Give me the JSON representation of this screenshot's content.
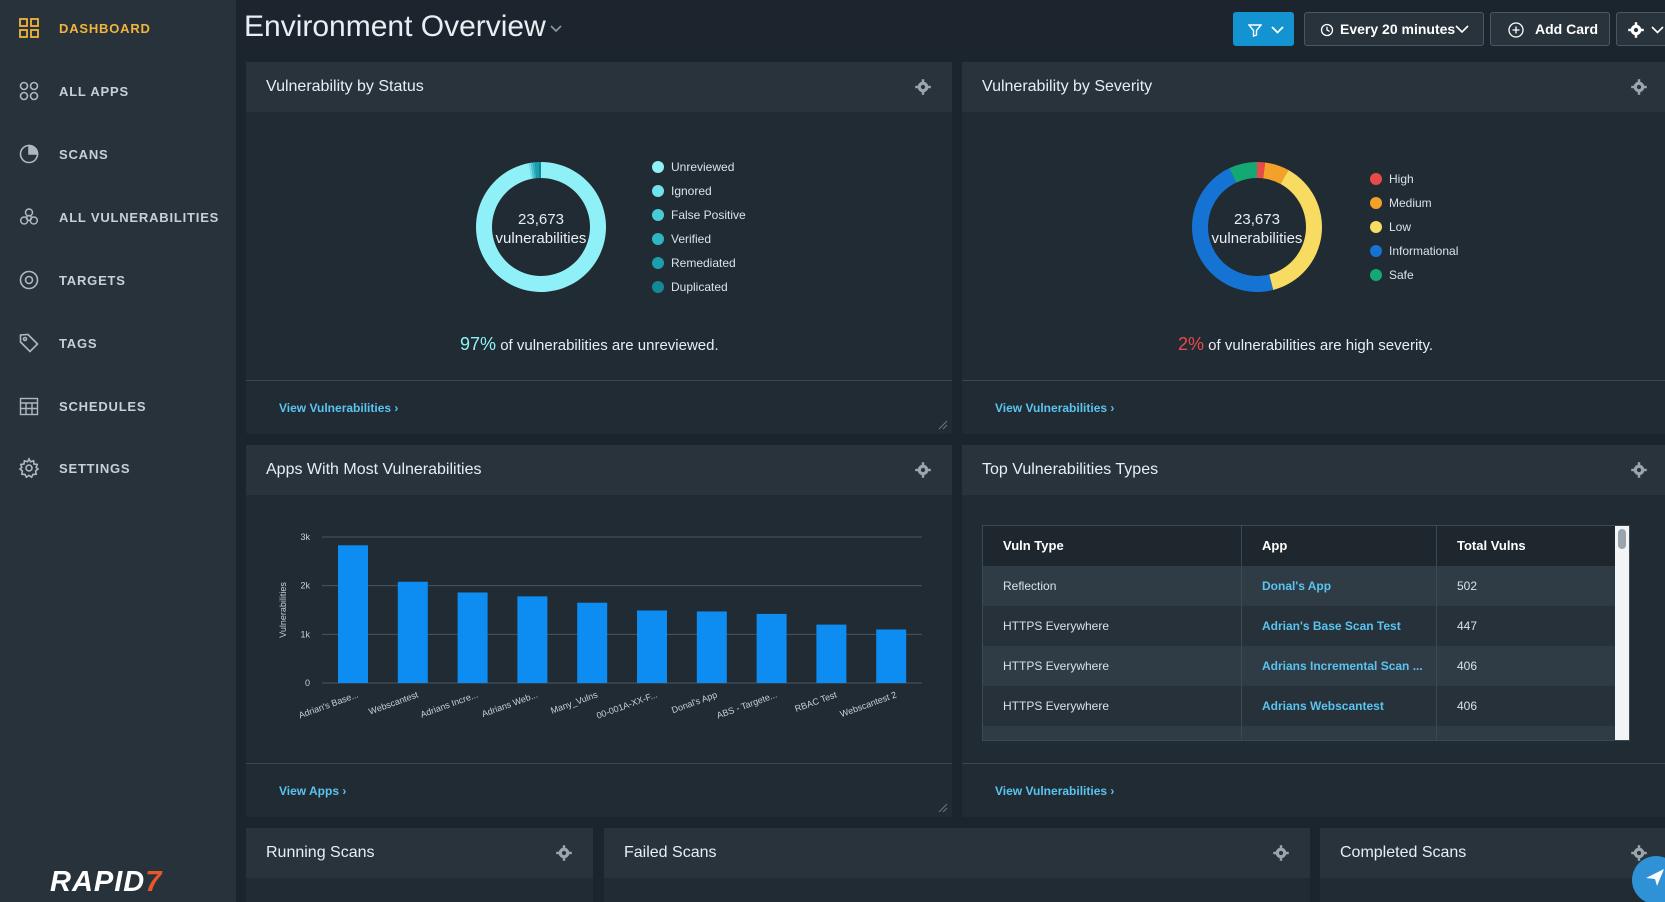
{
  "sidebar": {
    "items": [
      {
        "label": "DASHBOARD",
        "icon": "dashboard-grid-icon",
        "active": true
      },
      {
        "label": "ALL APPS",
        "icon": "apps-icon"
      },
      {
        "label": "SCANS",
        "icon": "scan-radar-icon"
      },
      {
        "label": "ALL VULNERABILITIES",
        "icon": "biohazard-icon"
      },
      {
        "label": "TARGETS",
        "icon": "target-icon"
      },
      {
        "label": "TAGS",
        "icon": "tag-icon"
      },
      {
        "label": "SCHEDULES",
        "icon": "calendar-icon"
      },
      {
        "label": "SETTINGS",
        "icon": "gear-icon"
      }
    ],
    "logo": {
      "text": "RAPID",
      "seven": "7"
    }
  },
  "header": {
    "title": "Environment Overview",
    "refresh_label": "Every 20 minutes",
    "add_card_label": "Add Card"
  },
  "cards": {
    "status": {
      "title": "Vulnerability by Status",
      "total": "23,673",
      "total_label": "vulnerabilities",
      "legend": [
        {
          "label": "Unreviewed",
          "color": "#8ff1f7"
        },
        {
          "label": "Ignored",
          "color": "#6fe2ec"
        },
        {
          "label": "False Positive",
          "color": "#49cbd6"
        },
        {
          "label": "Verified",
          "color": "#2fb6c4"
        },
        {
          "label": "Remediated",
          "color": "#1c9ead"
        },
        {
          "label": "Duplicated",
          "color": "#138896"
        }
      ],
      "summary_pct": "97%",
      "summary_text": " of vulnerabilities are unreviewed.",
      "link": "View Vulnerabilities"
    },
    "severity": {
      "title": "Vulnerability by Severity",
      "total": "23,673",
      "total_label": "vulnerabilities",
      "legend": [
        {
          "label": "High",
          "color": "#e84a4a"
        },
        {
          "label": "Medium",
          "color": "#f4a12a"
        },
        {
          "label": "Low",
          "color": "#f7dc61"
        },
        {
          "label": "Informational",
          "color": "#1573d4"
        },
        {
          "label": "Safe",
          "color": "#14a974"
        }
      ],
      "summary_pct": "2%",
      "summary_text": " of vulnerabilities are high severity.",
      "link": "View Vulnerabilities"
    },
    "apps": {
      "title": "Apps With Most Vulnerabilities",
      "link": "View Apps"
    },
    "top_types": {
      "title": "Top Vulnerabilities Types",
      "columns": [
        "Vuln Type",
        "App",
        "Total Vulns"
      ],
      "rows": [
        [
          "Reflection",
          "Donal's App",
          "502"
        ],
        [
          "HTTPS Everywhere",
          "Adrian's Base Scan Test",
          "447"
        ],
        [
          "HTTPS Everywhere",
          "Adrians Incremental Scan ...",
          "406"
        ],
        [
          "HTTPS Everywhere",
          "Adrians Webscantest",
          "406"
        ]
      ],
      "link": "View Vulnerabilities"
    },
    "running": {
      "title": "Running Scans"
    },
    "failed": {
      "title": "Failed Scans"
    },
    "completed": {
      "title": "Completed Scans"
    }
  },
  "chart_data": [
    {
      "type": "pie",
      "title": "Vulnerability by Status",
      "categories": [
        "Unreviewed",
        "Ignored",
        "False Positive",
        "Verified",
        "Remediated",
        "Duplicated"
      ],
      "values": [
        97,
        0.5,
        0.5,
        0.5,
        1,
        0.5
      ],
      "unit": "%"
    },
    {
      "type": "pie",
      "title": "Vulnerability by Severity",
      "categories": [
        "High",
        "Medium",
        "Low",
        "Informational",
        "Safe"
      ],
      "values": [
        2,
        6,
        38,
        47,
        7
      ],
      "unit": "%"
    },
    {
      "type": "bar",
      "title": "Apps With Most Vulnerabilities",
      "ylabel": "Vulnerabilities",
      "ylim": [
        0,
        3000
      ],
      "yticks": [
        "0",
        "1k",
        "2k",
        "3k"
      ],
      "categories": [
        "Adrian's Base...",
        "Webscantest",
        "Adrians Incre...",
        "Adrians Web...",
        "Many_Vulns",
        "00-001A-XX-F...",
        "Donal's App",
        "ABS - Targete...",
        "RBAC Test",
        "Webscantest 2"
      ],
      "values": [
        2830,
        2080,
        1860,
        1780,
        1650,
        1490,
        1470,
        1420,
        1200,
        1100
      ]
    }
  ]
}
